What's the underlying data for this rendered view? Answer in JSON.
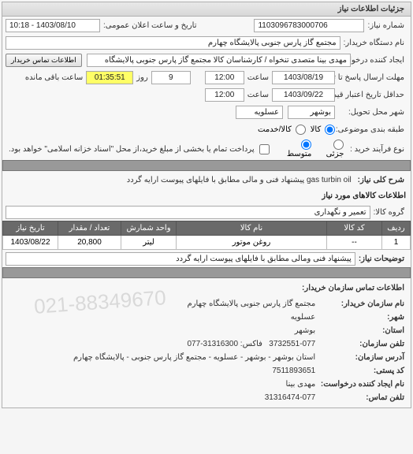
{
  "panel": {
    "title": "جزئیات اطلاعات نیاز"
  },
  "labels": {
    "need_no": "شماره نیاز:",
    "announce_dt": "تاریخ و ساعت اعلان عمومی:",
    "org_name": "نام دستگاه خریدار:",
    "creator": "ایجاد کننده درخواست:",
    "buyer_info_btn": "اطلاعات تماس خریدار",
    "deadline": "مهلت ارسال پاسخ تا تاریخ:",
    "hour": "ساعت",
    "day": "روز",
    "remain": "ساعت باقی مانده",
    "validity": "حداقل تاریخ اعتبار قیمت: تا تاریخ:",
    "delivery_city": "شهر محل تحویل:",
    "category": "طبقه بندی موضوعی:",
    "kala": "کالا",
    "khadamat": "کالا/خدمت",
    "buy_type": "نوع فرآیند خرید :",
    "partial": "جزئی",
    "medium": "متوسط",
    "payment_note": "پرداخت تمام یا بخشی از مبلغ خرید،از محل \"اسناد خزانه اسلامی\" خواهد بود.",
    "need_title": "شرح کلی نیاز:",
    "section_items": "اطلاعات کالاهای مورد نیاز",
    "group": "گروه کالا:",
    "desc_label": "توضیحات نیاز:",
    "contact_section": "اطلاعات تماس سازمان خریدار:",
    "org_buyer": "نام سازمان خریدار:",
    "city": "شهر:",
    "province": "استان:",
    "phone": "تلفن سازمان:",
    "address": "آدرس سازمان:",
    "postal": "کد پستی:",
    "req_creator": "نام ایجاد کننده درخواست:",
    "req_phone": "تلفن تماس:"
  },
  "values": {
    "need_no": "1103096783000706",
    "announce_dt": "1403/08/10 - 10:18",
    "org_name": "مجتمع گاز پارس جنوبی  پالایشگاه چهارم",
    "creator": "مهدی بینا متصدی تنخواه / کارشناسان کالا مجتمع گاز پارس جنوبی  پالایشگاه",
    "deadline_date": "1403/08/19",
    "deadline_time": "12:00",
    "days": "9",
    "remain_time": "01:35:51",
    "validity_date": "1403/09/22",
    "validity_time": "12:00",
    "delivery_city": "بوشهر",
    "delivery_sub": "عسلویه",
    "need_title": "gas turbin oil پیشنهاد فنی و مالی مطابق با فایلهای پیوست ارایه گردد",
    "group": "تعمیر و نگهداری",
    "desc": "پیشنهاد فنی ومالی مطابق با فایلهای پیوست ارایه گردد",
    "org_buyer": "مجتمع گاز پارس جنوبی پالایشگاه چهارم",
    "city": "عسلویه",
    "province": "بوشهر",
    "phone": "3732551-077",
    "fax": "31316300-077",
    "address": "استان بوشهر - بوشهر - عسلویه - مجتمع گاز پارس جنوبی - پالایشگاه چهارم",
    "postal": "7511893651",
    "req_creator": "مهدی بینا",
    "req_phone": "31316474-077"
  },
  "table": {
    "columns": [
      "ردیف",
      "کد کالا",
      "نام کالا",
      "واحد شمارش",
      "تعداد / مقدار",
      "تاریخ نیاز"
    ],
    "rows": [
      [
        "1",
        "--",
        "روغن موتور",
        "لیتر",
        "20,800",
        "1403/08/22"
      ]
    ],
    "col_widths": [
      "36px",
      "70px",
      "auto",
      "70px",
      "80px",
      "70px"
    ]
  },
  "colors": {
    "header_bg": "#6a6a6a",
    "yellow": "#ffff66",
    "panel_border": "#b0b0b0"
  }
}
